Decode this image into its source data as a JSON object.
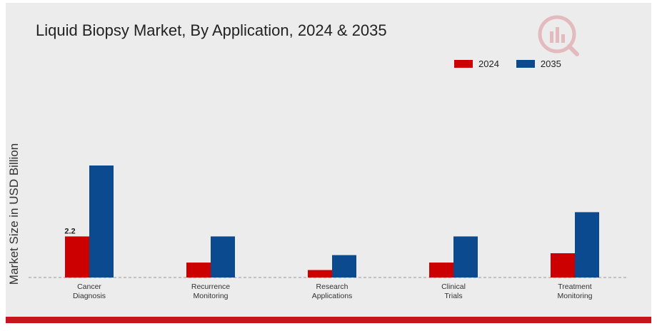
{
  "chart_data": {
    "type": "bar",
    "title": "Liquid Biopsy Market, By Application, 2024 & 2035",
    "ylabel": "Market Size in USD Billion",
    "xlabel": "",
    "categories": [
      "Cancer Diagnosis",
      "Recurrence Monitoring",
      "Research Applications",
      "Clinical Trials",
      "Treatment Monitoring"
    ],
    "category_lines": [
      [
        "Cancer",
        "Diagnosis"
      ],
      [
        "Recurrence",
        "Monitoring"
      ],
      [
        "Research",
        "Applications"
      ],
      [
        "Clinical",
        "Trials"
      ],
      [
        "Treatment",
        "Monitoring"
      ]
    ],
    "series": [
      {
        "name": "2024",
        "color": "#cc0000",
        "values": [
          2.2,
          0.8,
          0.4,
          0.8,
          1.3
        ]
      },
      {
        "name": "2035",
        "color": "#0b4a8e",
        "values": [
          6.0,
          2.2,
          1.2,
          2.2,
          3.5
        ]
      }
    ],
    "data_labels": [
      {
        "series": 0,
        "index": 0,
        "text": "2.2"
      }
    ],
    "ylim": [
      0,
      8.2
    ],
    "grid": false,
    "legend_position": "top-right"
  }
}
